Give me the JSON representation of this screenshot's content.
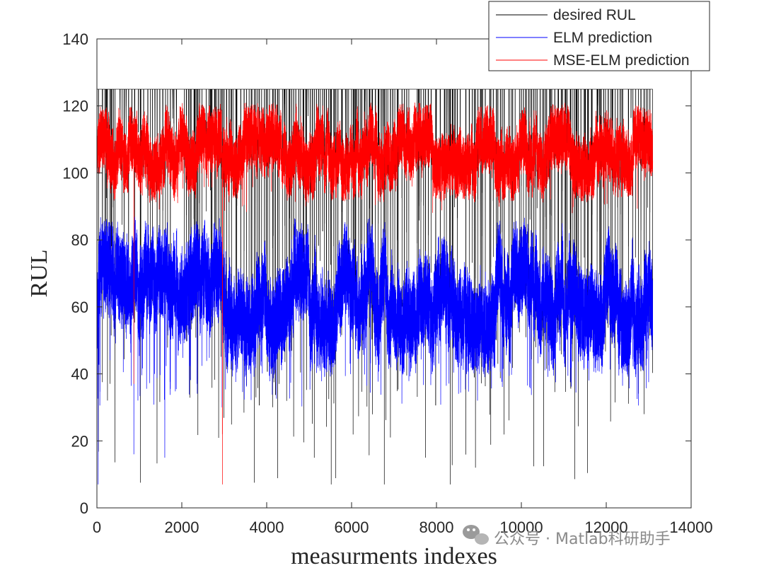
{
  "chart_data": {
    "type": "line",
    "title": "",
    "xlabel": "measurments indexes",
    "ylabel": "RUL",
    "xlim": [
      0,
      14000
    ],
    "ylim": [
      0,
      140
    ],
    "xticks": [
      0,
      2000,
      4000,
      6000,
      8000,
      10000,
      12000,
      14000
    ],
    "yticks": [
      0,
      20,
      40,
      60,
      80,
      100,
      120,
      140
    ],
    "grid": false,
    "legend_position": "top-right",
    "n_points": 13096,
    "series": [
      {
        "name": "desired RUL",
        "color": "#000000",
        "cap_value": 125,
        "min_value": 7,
        "typical_range": [
          60,
          125
        ]
      },
      {
        "name": "ELM prediction",
        "color": "#0000ff",
        "typical_range": [
          45,
          82
        ],
        "min_value": 7,
        "max_value": 92
      },
      {
        "name": "MSE-ELM prediction",
        "color": "#ff0000",
        "typical_range": [
          95,
          118
        ],
        "min_value": 7,
        "max_value": 122
      }
    ]
  },
  "watermark": {
    "text": "公众号 · Matlab科研助手",
    "icon": "wechat-icon"
  }
}
